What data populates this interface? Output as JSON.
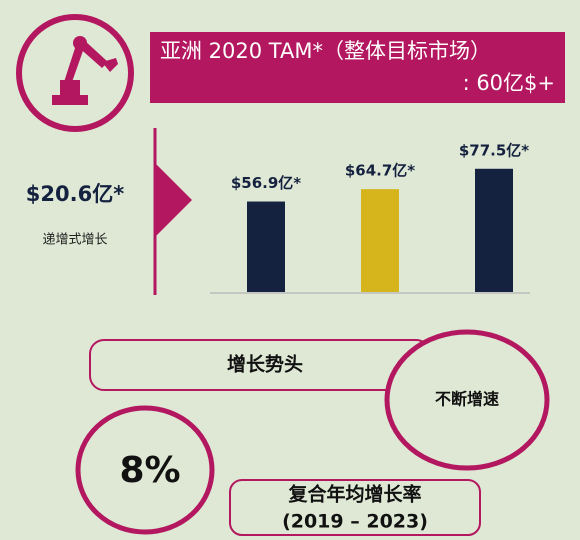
{
  "header": {
    "title": "亚洲 2020 TAM*（整体目标市场）",
    "subtitle": ": 60亿$+"
  },
  "side": {
    "value": "$20.6亿*",
    "label": "递增式增长"
  },
  "momentum": {
    "title": "增长势头",
    "note": "不断增速"
  },
  "cagr": {
    "value": "8%",
    "label": "复合年均增长率",
    "period": "(2019 – 2023)"
  },
  "chart_data": {
    "type": "bar",
    "categories": [
      null,
      null,
      null
    ],
    "values": [
      56.9,
      64.7,
      77.5
    ],
    "value_labels": [
      "$56.9亿*",
      "$64.7亿*",
      "$77.5亿*"
    ],
    "colors": [
      "#14213f",
      "#d6b51c",
      "#14213f"
    ]
  }
}
